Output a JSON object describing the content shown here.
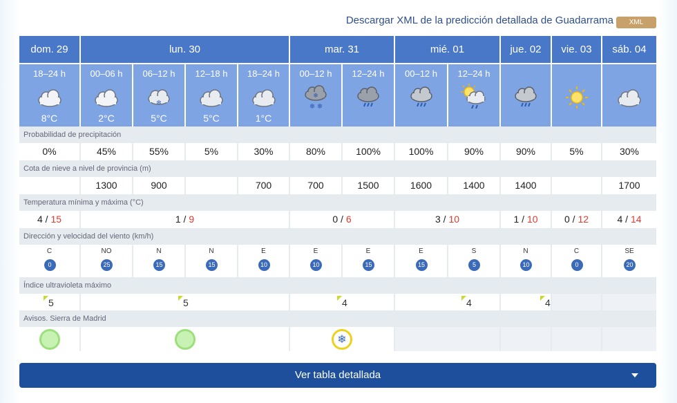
{
  "header": {
    "xml_link": "Descargar XML de la predicción detallada de Guadarrama",
    "xml_badge": "XML"
  },
  "days": [
    {
      "label": "dom. 29"
    },
    {
      "label": "lun. 30"
    },
    {
      "label": "mar. 31"
    },
    {
      "label": "mié. 01"
    },
    {
      "label": "jue. 02"
    },
    {
      "label": "vie. 03"
    },
    {
      "label": "sáb. 04"
    }
  ],
  "periods": [
    {
      "label": "18–24 h",
      "icon": "cloud-icon",
      "temp": "8°C"
    },
    {
      "label": "00–06 h",
      "icon": "cloud-icon",
      "temp": "2°C"
    },
    {
      "label": "06–12 h",
      "icon": "cloud-snow-light-icon",
      "temp": "5°C"
    },
    {
      "label": "12–18 h",
      "icon": "cloud-icon",
      "temp": "5°C"
    },
    {
      "label": "18–24 h",
      "icon": "cloud-icon",
      "temp": "1°C"
    },
    {
      "label": "00–12 h",
      "icon": "snow-cloud-icon",
      "temp": ""
    },
    {
      "label": "12–24 h",
      "icon": "rain-cloud-icon",
      "temp": ""
    },
    {
      "label": "00–12 h",
      "icon": "rain-cloud-icon",
      "temp": ""
    },
    {
      "label": "12–24 h",
      "icon": "sun-rain-cloud-icon",
      "temp": ""
    },
    {
      "label": "",
      "icon": "rain-cloud-icon",
      "temp": ""
    },
    {
      "label": "",
      "icon": "sun-icon",
      "temp": ""
    },
    {
      "label": "",
      "icon": "cloud-icon",
      "temp": ""
    }
  ],
  "sections": {
    "precip": "Probabilidad de precipitación",
    "snow": "Cota de nieve a nivel de provincia (m)",
    "temp": "Temperatura mínima y máxima (°C)",
    "wind": "Dirección y velocidad del viento (km/h)",
    "uv": "Índice ultravioleta máximo",
    "warnings": "Avisos. Sierra de Madrid"
  },
  "precip": [
    "0%",
    "45%",
    "55%",
    "5%",
    "30%",
    "80%",
    "100%",
    "100%",
    "90%",
    "90%",
    "5%",
    "30%"
  ],
  "snow_level": [
    "",
    "1300",
    "900",
    "",
    "700",
    "700",
    "1500",
    "1600",
    "1400",
    "1400",
    "",
    "1700"
  ],
  "temps": [
    {
      "min": "4",
      "max": "15"
    },
    {
      "min": "1",
      "max": "9"
    },
    {
      "min": "0",
      "max": "6"
    },
    {
      "min": "3",
      "max": "10"
    },
    {
      "min": "1",
      "max": "10"
    },
    {
      "min": "0",
      "max": "12"
    },
    {
      "min": "4",
      "max": "14"
    }
  ],
  "wind": [
    {
      "dir": "C",
      "speed": "0"
    },
    {
      "dir": "NO",
      "speed": "25"
    },
    {
      "dir": "N",
      "speed": "15"
    },
    {
      "dir": "N",
      "speed": "15"
    },
    {
      "dir": "E",
      "speed": "10"
    },
    {
      "dir": "E",
      "speed": "10"
    },
    {
      "dir": "E",
      "speed": "15"
    },
    {
      "dir": "E",
      "speed": "15"
    },
    {
      "dir": "S",
      "speed": "5"
    },
    {
      "dir": "N",
      "speed": "10"
    },
    {
      "dir": "C",
      "speed": "0"
    },
    {
      "dir": "SE",
      "speed": "20"
    }
  ],
  "uv": [
    "5",
    "5",
    "4",
    "4",
    "4",
    "",
    ""
  ],
  "warnings": [
    "green",
    "green",
    "yellow-snow",
    "",
    "",
    "",
    ""
  ],
  "colors": {
    "max_temp": "#e23a2e",
    "header_blue": "#4a78c9",
    "period_blue": "#7fa4e3",
    "button_blue": "#1e4f9c"
  },
  "button": {
    "label": "Ver tabla detallada"
  }
}
